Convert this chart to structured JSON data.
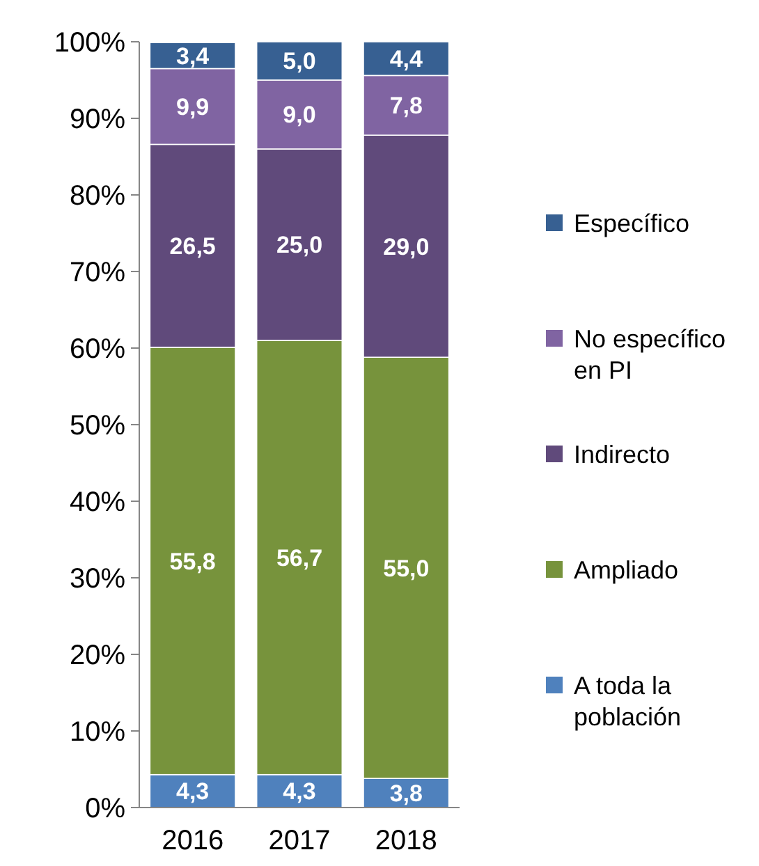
{
  "chart_data": {
    "type": "bar",
    "stacked": true,
    "categories": [
      "2016",
      "2017",
      "2018"
    ],
    "series": [
      {
        "name": "A toda la población",
        "color": "#4f81bd",
        "values": [
          4.3,
          4.3,
          3.8
        ],
        "value_labels": [
          "4,3",
          "4,3",
          "3,8"
        ]
      },
      {
        "name": "Ampliado",
        "color": "#77933c",
        "values": [
          55.8,
          56.7,
          55.0
        ],
        "value_labels": [
          "55,8",
          "56,7",
          "55,0"
        ]
      },
      {
        "name": "Indirecto",
        "color": "#604a7b",
        "values": [
          26.5,
          25.0,
          29.0
        ],
        "value_labels": [
          "26,5",
          "25,0",
          "29,0"
        ]
      },
      {
        "name": "No específico en PI",
        "color": "#8064a2",
        "values": [
          9.9,
          9.0,
          7.8
        ],
        "value_labels": [
          "9,9",
          "9,0",
          "7,8"
        ]
      },
      {
        "name": "Específico",
        "color": "#376092",
        "values": [
          3.4,
          5.0,
          4.4
        ],
        "value_labels": [
          "3,4",
          "5,0",
          "4,4"
        ]
      }
    ],
    "ylim": [
      0,
      100
    ],
    "yticks": [
      {
        "value": 0,
        "label": "0%"
      },
      {
        "value": 10,
        "label": "10%"
      },
      {
        "value": 20,
        "label": "20%"
      },
      {
        "value": 30,
        "label": "30%"
      },
      {
        "value": 40,
        "label": "40%"
      },
      {
        "value": 50,
        "label": "50%"
      },
      {
        "value": 60,
        "label": "60%"
      },
      {
        "value": 70,
        "label": "70%"
      },
      {
        "value": 80,
        "label": "80%"
      },
      {
        "value": 90,
        "label": "90%"
      },
      {
        "value": 100,
        "label": "100%"
      }
    ],
    "legend": "right",
    "grid": false
  }
}
